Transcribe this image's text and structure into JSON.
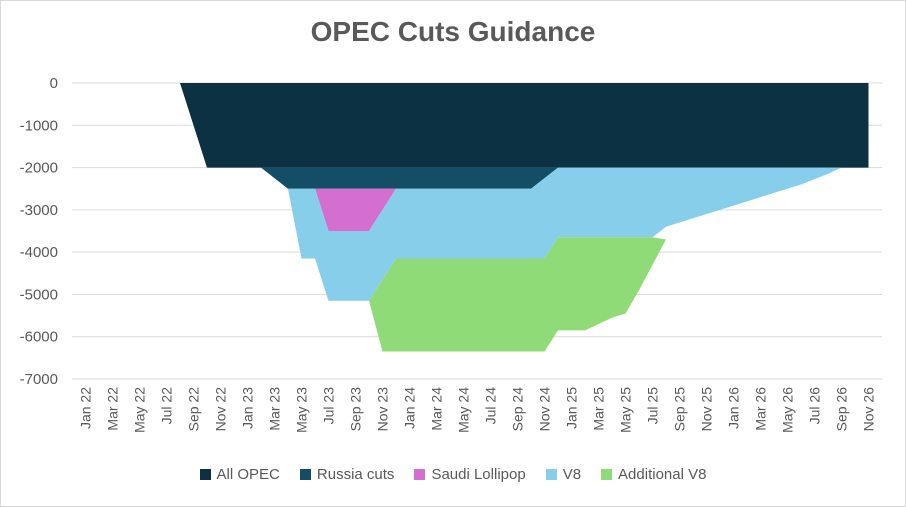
{
  "chart_data": {
    "type": "area",
    "title": "OPEC Cuts Guidance",
    "xlabel": "",
    "ylabel": "",
    "ylim": [
      -7000,
      0
    ],
    "yticks": [
      0,
      -1000,
      -2000,
      -3000,
      -4000,
      -5000,
      -6000,
      -7000
    ],
    "x_tick_labels": [
      "Jan 22",
      "Mar 22",
      "May 22",
      "Jul 22",
      "Sep 22",
      "Nov 22",
      "Jan 23",
      "Mar 23",
      "May 23",
      "Jul 23",
      "Sep 23",
      "Nov 23",
      "Jan 24",
      "Mar 24",
      "May 24",
      "Jul 24",
      "Sep 24",
      "Nov 24",
      "Jan 25",
      "Mar 25",
      "May 25",
      "Jul 25",
      "Sep 25",
      "Nov 25",
      "Jan 26",
      "Mar 26",
      "May 26",
      "Jul 26",
      "Sep 26",
      "Nov 26"
    ],
    "grid": true,
    "legend_position": "bottom",
    "series": [
      {
        "name": "All OPEC",
        "color": "#0b3142",
        "upper": [
          [
            0,
            0
          ],
          [
            59,
            0
          ]
        ],
        "lower": [
          [
            0,
            0
          ],
          [
            8,
            0
          ],
          [
            10,
            -2000
          ],
          [
            59,
            -2000
          ]
        ]
      },
      {
        "name": "Russia cuts",
        "color": "#144d66",
        "upper": [
          [
            14,
            -2000
          ],
          [
            36,
            -2000
          ]
        ],
        "lower": [
          [
            14,
            -2000
          ],
          [
            16,
            -2500
          ],
          [
            34,
            -2500
          ],
          [
            36,
            -2000
          ]
        ]
      },
      {
        "name": "Saudi Lollipop",
        "color": "#d56fcf",
        "upper": [
          [
            18,
            -2500
          ],
          [
            24,
            -2500
          ]
        ],
        "lower": [
          [
            18,
            -2500
          ],
          [
            19,
            -3500
          ],
          [
            22,
            -3500
          ],
          [
            24,
            -2500
          ]
        ]
      },
      {
        "name": "V8",
        "color": "#87ceeb",
        "upper": [
          [
            16,
            -2500
          ],
          [
            18,
            -2500
          ],
          [
            19,
            -3500
          ],
          [
            22,
            -3500
          ],
          [
            24,
            -2500
          ],
          [
            34,
            -2500
          ],
          [
            36,
            -2000
          ],
          [
            57,
            -2000
          ]
        ],
        "lower": [
          [
            16,
            -2500
          ],
          [
            17,
            -4150
          ],
          [
            18,
            -4150
          ],
          [
            19,
            -5150
          ],
          [
            22,
            -5150
          ],
          [
            24,
            -4150
          ],
          [
            35,
            -4150
          ],
          [
            36,
            -3650
          ],
          [
            43,
            -3650
          ],
          [
            44,
            -3400
          ],
          [
            46,
            -3200
          ],
          [
            48,
            -3000
          ],
          [
            50,
            -2800
          ],
          [
            52,
            -2600
          ],
          [
            54,
            -2400
          ],
          [
            56,
            -2150
          ],
          [
            57,
            -2000
          ]
        ]
      },
      {
        "name": "Additional V8",
        "color": "#8fdb77",
        "upper": [
          [
            22,
            -5150
          ],
          [
            24,
            -4150
          ],
          [
            35,
            -4150
          ],
          [
            36,
            -3650
          ],
          [
            43,
            -3650
          ]
        ],
        "lower": [
          [
            22,
            -5150
          ],
          [
            23,
            -6350
          ],
          [
            35,
            -6350
          ],
          [
            36,
            -5850
          ],
          [
            38,
            -5850
          ],
          [
            40,
            -5550
          ],
          [
            41,
            -5450
          ],
          [
            42,
            -4900
          ],
          [
            43,
            -4300
          ],
          [
            44,
            -3700
          ]
        ]
      }
    ]
  }
}
